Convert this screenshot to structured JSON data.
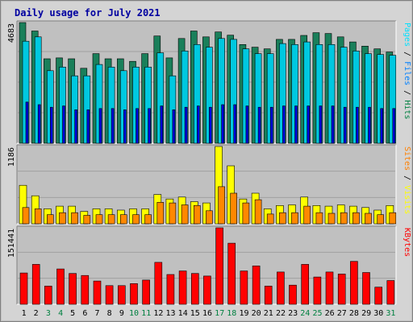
{
  "chart_data": {
    "type": "bar",
    "title": "Daily usage for July 2021",
    "days": [
      "1",
      "2",
      "3",
      "4",
      "5",
      "6",
      "7",
      "8",
      "9",
      "10",
      "11",
      "12",
      "13",
      "14",
      "15",
      "16",
      "17",
      "18",
      "19",
      "20",
      "21",
      "22",
      "23",
      "24",
      "25",
      "26",
      "27",
      "28",
      "29",
      "30",
      "31"
    ],
    "weekend_days": [
      "3",
      "4",
      "10",
      "11",
      "17",
      "18",
      "24",
      "25",
      "31"
    ],
    "panels": [
      {
        "id": "hits",
        "ymax_label": "4683",
        "ylim": [
          0,
          4683
        ],
        "axis_label_parts": [
          {
            "text": "Pages",
            "color": "#00e0ff"
          },
          {
            "text": " / ",
            "color": "#000000"
          },
          {
            "text": "Files",
            "color": "#0080ff"
          },
          {
            "text": " / ",
            "color": "#000000"
          },
          {
            "text": "Hits",
            "color": "#008040"
          }
        ],
        "series": [
          {
            "key": "hits",
            "color": "#1a7f5a",
            "values": [
              4683,
              4354,
              3278,
              3311,
              3278,
              2910,
              3477,
              3278,
              3278,
              3179,
              3477,
              4162,
              3311,
              4065,
              4354,
              4126,
              4318,
              4194,
              3831,
              3729,
              3661,
              4029,
              4029,
              4185,
              4290,
              4257,
              4126,
              3932,
              3768,
              3661,
              3541
            ]
          },
          {
            "key": "files",
            "color": "#00c8e0",
            "values": [
              3959,
              4126,
              2815,
              2956,
              2617,
              2617,
              3057,
              2956,
              2815,
              2956,
              2956,
              3509,
              2617,
              3582,
              3831,
              3729,
              4065,
              4029,
              3661,
              3477,
              3477,
              3868,
              3831,
              3931,
              3831,
              3831,
              3729,
              3582,
              3477,
              3444,
              3411
            ]
          },
          {
            "key": "pages",
            "color": "#0000e0",
            "values": [
              1600,
              1500,
              1400,
              1450,
              1300,
              1300,
              1350,
              1350,
              1300,
              1350,
              1350,
              1450,
              1300,
              1400,
              1450,
              1400,
              1500,
              1500,
              1450,
              1400,
              1400,
              1450,
              1450,
              1450,
              1450,
              1450,
              1400,
              1400,
              1400,
              1350,
              1350
            ]
          }
        ]
      },
      {
        "id": "visits",
        "ymax_label": "1186",
        "ylim": [
          0,
          1186
        ],
        "axis_label_parts": [
          {
            "text": "Sites",
            "color": "#ff8000"
          },
          {
            "text": " / ",
            "color": "#000000"
          },
          {
            "text": "Visits",
            "color": "#ffff00"
          }
        ],
        "series": [
          {
            "key": "visits",
            "color": "#ffff00",
            "values": [
              590,
              430,
              230,
              270,
              270,
              190,
              230,
              230,
              210,
              230,
              230,
              450,
              380,
              410,
              340,
              320,
              1186,
              890,
              380,
              470,
              230,
              280,
              290,
              410,
              280,
              270,
              290,
              270,
              250,
              210,
              280
            ]
          },
          {
            "key": "sites",
            "color": "#ff8800",
            "values": [
              250,
              230,
              140,
              170,
              170,
              130,
              140,
              140,
              140,
              140,
              140,
              330,
              320,
              290,
              280,
              200,
              570,
              470,
              320,
              370,
              150,
              170,
              170,
              270,
              170,
              160,
              170,
              170,
              160,
              140,
              170
            ]
          }
        ]
      },
      {
        "id": "kbytes",
        "ymax_label": "151441",
        "ylim": [
          0,
          151441
        ],
        "axis_label_parts": [
          {
            "text": "KBytes",
            "color": "#ff0000"
          }
        ],
        "series": [
          {
            "key": "kbytes",
            "color": "#ff0000",
            "values": [
              62000,
              79000,
              36000,
              70000,
              61000,
              57000,
              46000,
              37000,
              37000,
              41000,
              48000,
              83000,
              59000,
              66000,
              61000,
              56000,
              151441,
              121000,
              66000,
              76000,
              36000,
              64000,
              38000,
              79000,
              54000,
              64000,
              60000,
              85000,
              63000,
              34000,
              47000
            ]
          }
        ]
      }
    ]
  }
}
